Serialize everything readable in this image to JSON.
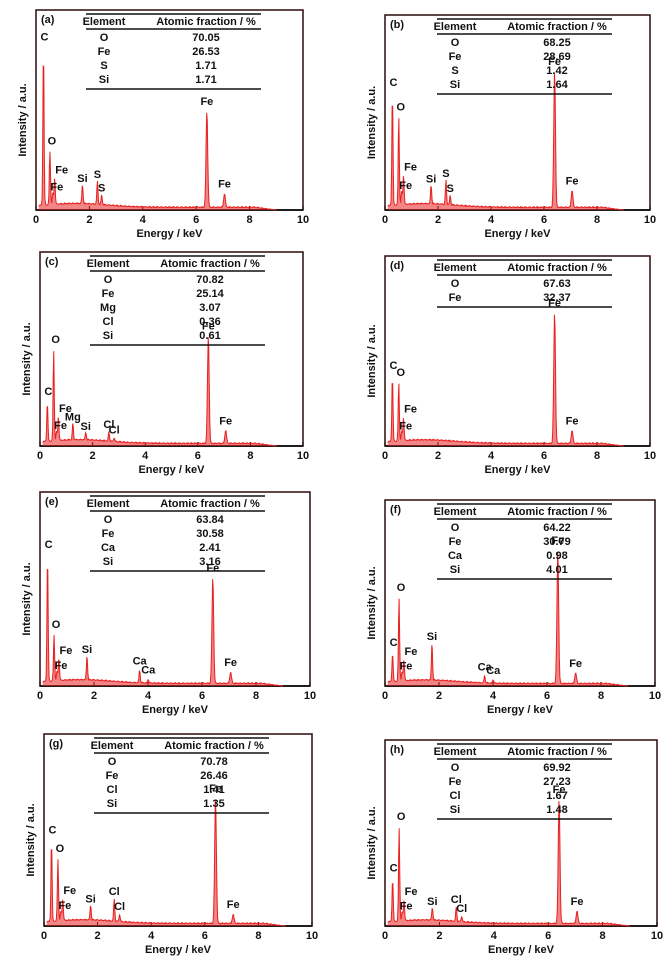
{
  "colors": {
    "spectrum": "#e82020",
    "frame": "#3a1a1a",
    "text": "#111111"
  },
  "chart_data": [
    {
      "type": "line",
      "panel_label": "(a)",
      "xlabel": "Energy / keV",
      "ylabel": "Intensity / a.u.",
      "xlim": [
        0,
        10
      ],
      "xticks": [
        0,
        2,
        4,
        6,
        8,
        10
      ],
      "table": {
        "headers": [
          "Element",
          "Atomic fraction / %"
        ],
        "rows": [
          [
            "O",
            "70.05"
          ],
          [
            "Fe",
            "26.53"
          ],
          [
            "S",
            "1.71"
          ],
          [
            "Si",
            "1.71"
          ]
        ]
      },
      "peaks": [
        {
          "label": "C",
          "x": 0.28,
          "y": 0.82
        },
        {
          "label": "O",
          "x": 0.52,
          "y": 0.28
        },
        {
          "label": "Fe",
          "x": 0.7,
          "y": 0.14
        },
        {
          "label": "Fe",
          "x": 0.63,
          "y": 0.06
        },
        {
          "label": "Si",
          "x": 1.74,
          "y": 0.1
        },
        {
          "label": "S",
          "x": 2.3,
          "y": 0.12
        },
        {
          "label": "S",
          "x": 2.46,
          "y": 0.05
        },
        {
          "label": "Fe",
          "x": 6.4,
          "y": 0.5
        },
        {
          "label": "Fe",
          "x": 7.06,
          "y": 0.07
        }
      ]
    },
    {
      "type": "line",
      "panel_label": "(b)",
      "xlabel": "Energy / keV",
      "ylabel": "Intensity / a.u.",
      "xlim": [
        0,
        10
      ],
      "xticks": [
        0,
        2,
        4,
        6,
        8,
        10
      ],
      "table": {
        "headers": [
          "Element",
          "Atomic fraction / %"
        ],
        "rows": [
          [
            "O",
            "68.25"
          ],
          [
            "Fe",
            "28.69"
          ],
          [
            "S",
            "1.42"
          ],
          [
            "Si",
            "1.64"
          ]
        ]
      },
      "peaks": [
        {
          "label": "C",
          "x": 0.28,
          "y": 0.6
        },
        {
          "label": "O",
          "x": 0.52,
          "y": 0.47
        },
        {
          "label": "Fe",
          "x": 0.7,
          "y": 0.16
        },
        {
          "label": "Fe",
          "x": 0.63,
          "y": 0.07
        },
        {
          "label": "Si",
          "x": 1.74,
          "y": 0.1
        },
        {
          "label": "S",
          "x": 2.3,
          "y": 0.13
        },
        {
          "label": "S",
          "x": 2.46,
          "y": 0.05
        },
        {
          "label": "Fe",
          "x": 6.4,
          "y": 0.73
        },
        {
          "label": "Fe",
          "x": 7.06,
          "y": 0.09
        }
      ]
    },
    {
      "type": "line",
      "panel_label": "(c)",
      "xlabel": "Energy / keV",
      "ylabel": "Intensity / a.u.",
      "xlim": [
        0,
        10
      ],
      "xticks": [
        0,
        2,
        4,
        6,
        8,
        10
      ],
      "table": {
        "headers": [
          "Element",
          "Atomic fraction / %"
        ],
        "rows": [
          [
            "O",
            "70.82"
          ],
          [
            "Fe",
            "25.14"
          ],
          [
            "Mg",
            "3.07"
          ],
          [
            "Cl",
            "0.36"
          ],
          [
            "Si",
            "0.61"
          ]
        ]
      },
      "peaks": [
        {
          "label": "C",
          "x": 0.28,
          "y": 0.21
        },
        {
          "label": "O",
          "x": 0.52,
          "y": 0.49
        },
        {
          "label": "Fe",
          "x": 0.7,
          "y": 0.13
        },
        {
          "label": "Fe",
          "x": 0.63,
          "y": 0.05
        },
        {
          "label": "Mg",
          "x": 1.25,
          "y": 0.09
        },
        {
          "label": "Si",
          "x": 1.74,
          "y": 0.04
        },
        {
          "label": "Cl",
          "x": 2.62,
          "y": 0.05
        },
        {
          "label": "Cl",
          "x": 2.82,
          "y": 0.02
        },
        {
          "label": "Fe",
          "x": 6.4,
          "y": 0.58
        },
        {
          "label": "Fe",
          "x": 7.06,
          "y": 0.07
        }
      ]
    },
    {
      "type": "line",
      "panel_label": "(d)",
      "xlabel": "Energy / keV",
      "ylabel": "Intensity / a.u.",
      "xlim": [
        0,
        10
      ],
      "xticks": [
        0,
        2,
        4,
        6,
        8,
        10
      ],
      "table": {
        "headers": [
          "Element",
          "Atomic fraction / %"
        ],
        "rows": [
          [
            "O",
            "67.63"
          ],
          [
            "Fe",
            "32.37"
          ]
        ]
      },
      "peaks": [
        {
          "label": "C",
          "x": 0.28,
          "y": 0.36
        },
        {
          "label": "O",
          "x": 0.52,
          "y": 0.32
        },
        {
          "label": "Fe",
          "x": 0.7,
          "y": 0.13
        },
        {
          "label": "Fe",
          "x": 0.63,
          "y": 0.05
        },
        {
          "label": "Fe",
          "x": 6.4,
          "y": 0.72
        },
        {
          "label": "Fe",
          "x": 7.06,
          "y": 0.07
        }
      ]
    },
    {
      "type": "line",
      "panel_label": "(e)",
      "xlabel": "Energy / keV",
      "ylabel": "Intensity / a.u.",
      "xlim": [
        0,
        10
      ],
      "xticks": [
        0,
        2,
        4,
        6,
        8,
        10
      ],
      "table": {
        "headers": [
          "Element",
          "Atomic fraction / %"
        ],
        "rows": [
          [
            "O",
            "63.84"
          ],
          [
            "Fe",
            "30.58"
          ],
          [
            "Ca",
            "2.41"
          ],
          [
            "Si",
            "3.16"
          ]
        ]
      },
      "peaks": [
        {
          "label": "C",
          "x": 0.28,
          "y": 0.68
        },
        {
          "label": "O",
          "x": 0.52,
          "y": 0.25
        },
        {
          "label": "Fe",
          "x": 0.7,
          "y": 0.12
        },
        {
          "label": "Fe",
          "x": 0.63,
          "y": 0.05
        },
        {
          "label": "Si",
          "x": 1.74,
          "y": 0.13
        },
        {
          "label": "Ca",
          "x": 3.69,
          "y": 0.07
        },
        {
          "label": "Ca",
          "x": 4.01,
          "y": 0.02
        },
        {
          "label": "Fe",
          "x": 6.4,
          "y": 0.57
        },
        {
          "label": "Fe",
          "x": 7.06,
          "y": 0.06
        }
      ]
    },
    {
      "type": "line",
      "panel_label": "(f)",
      "xlabel": "Energy / keV",
      "ylabel": "Intensity / a.u.",
      "xlim": [
        0,
        10
      ],
      "xticks": [
        0,
        2,
        4,
        6,
        8,
        10
      ],
      "table": {
        "headers": [
          "Element",
          "Atomic fraction / %"
        ],
        "rows": [
          [
            "O",
            "64.22"
          ],
          [
            "Fe",
            "30.79"
          ],
          [
            "Ca",
            "0.98"
          ],
          [
            "Si",
            "4.01"
          ]
        ]
      },
      "peaks": [
        {
          "label": "C",
          "x": 0.28,
          "y": 0.16
        },
        {
          "label": "O",
          "x": 0.52,
          "y": 0.47
        },
        {
          "label": "Fe",
          "x": 0.7,
          "y": 0.12
        },
        {
          "label": "Fe",
          "x": 0.63,
          "y": 0.05
        },
        {
          "label": "Si",
          "x": 1.74,
          "y": 0.21
        },
        {
          "label": "Ca",
          "x": 3.69,
          "y": 0.04
        },
        {
          "label": "Ca",
          "x": 4.01,
          "y": 0.02
        },
        {
          "label": "Fe",
          "x": 6.4,
          "y": 0.75
        },
        {
          "label": "Fe",
          "x": 7.06,
          "y": 0.06
        }
      ]
    },
    {
      "type": "line",
      "panel_label": "(g)",
      "xlabel": "Energy / keV",
      "ylabel": "Intensity / a.u.",
      "xlim": [
        0,
        10
      ],
      "xticks": [
        0,
        2,
        4,
        6,
        8,
        10
      ],
      "table": {
        "headers": [
          "Element",
          "Atomic fraction / %"
        ],
        "rows": [
          [
            "O",
            "70.78"
          ],
          [
            "Fe",
            "26.46"
          ],
          [
            "Cl",
            "1.41"
          ],
          [
            "Si",
            "1.35"
          ]
        ]
      },
      "peaks": [
        {
          "label": "C",
          "x": 0.28,
          "y": 0.44
        },
        {
          "label": "O",
          "x": 0.52,
          "y": 0.34
        },
        {
          "label": "Fe",
          "x": 0.7,
          "y": 0.12
        },
        {
          "label": "Fe",
          "x": 0.63,
          "y": 0.05
        },
        {
          "label": "Si",
          "x": 1.74,
          "y": 0.08
        },
        {
          "label": "Cl",
          "x": 2.62,
          "y": 0.12
        },
        {
          "label": "Cl",
          "x": 2.82,
          "y": 0.04
        },
        {
          "label": "Fe",
          "x": 6.4,
          "y": 0.68
        },
        {
          "label": "Fe",
          "x": 7.06,
          "y": 0.05
        }
      ]
    },
    {
      "type": "line",
      "panel_label": "(h)",
      "xlabel": "Energy / keV",
      "ylabel": "Intensity / a.u.",
      "xlim": [
        0,
        10
      ],
      "xticks": [
        0,
        2,
        4,
        6,
        8,
        10
      ],
      "table": {
        "headers": [
          "Element",
          "Atomic fraction / %"
        ],
        "rows": [
          [
            "O",
            "69.92"
          ],
          [
            "Fe",
            "27.23"
          ],
          [
            "Cl",
            "1.67"
          ],
          [
            "Si",
            "1.48"
          ]
        ]
      },
      "peaks": [
        {
          "label": "C",
          "x": 0.28,
          "y": 0.24
        },
        {
          "label": "O",
          "x": 0.52,
          "y": 0.53
        },
        {
          "label": "Fe",
          "x": 0.7,
          "y": 0.12
        },
        {
          "label": "Fe",
          "x": 0.63,
          "y": 0.05
        },
        {
          "label": "Si",
          "x": 1.74,
          "y": 0.07
        },
        {
          "label": "Cl",
          "x": 2.62,
          "y": 0.08
        },
        {
          "label": "Cl",
          "x": 2.82,
          "y": 0.03
        },
        {
          "label": "Fe",
          "x": 6.4,
          "y": 0.7
        },
        {
          "label": "Fe",
          "x": 7.06,
          "y": 0.07
        }
      ]
    }
  ]
}
